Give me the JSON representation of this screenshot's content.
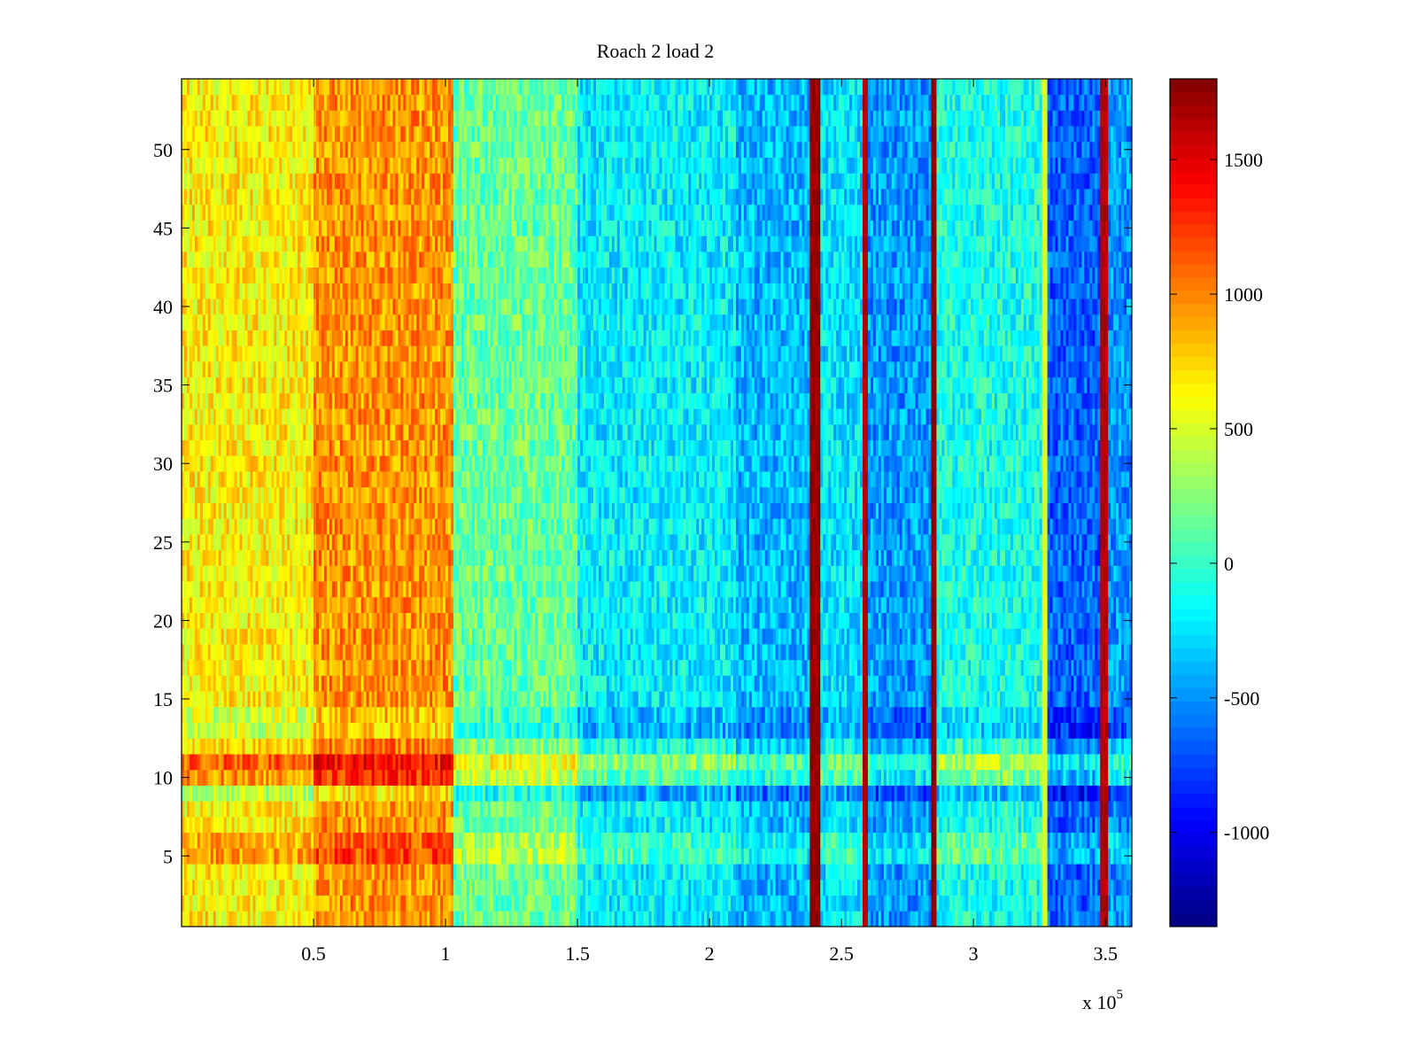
{
  "chart_data": {
    "type": "heatmap",
    "title": "Roach 2 load 2",
    "xlabel": "",
    "ylabel": "",
    "x_exponent_label": "x 10",
    "x_exponent_power": "5",
    "xlim": [
      0,
      360000
    ],
    "ylim": [
      0.5,
      54.5
    ],
    "rows": 54,
    "x_ticks": [
      {
        "value": 50000,
        "label": "0.5"
      },
      {
        "value": 100000,
        "label": "1"
      },
      {
        "value": 150000,
        "label": "1.5"
      },
      {
        "value": 200000,
        "label": "2"
      },
      {
        "value": 250000,
        "label": "2.5"
      },
      {
        "value": 300000,
        "label": "3"
      },
      {
        "value": 350000,
        "label": "3.5"
      }
    ],
    "y_ticks": [
      {
        "value": 5,
        "label": "5"
      },
      {
        "value": 10,
        "label": "10"
      },
      {
        "value": 15,
        "label": "15"
      },
      {
        "value": 20,
        "label": "20"
      },
      {
        "value": 25,
        "label": "25"
      },
      {
        "value": 30,
        "label": "30"
      },
      {
        "value": 35,
        "label": "35"
      },
      {
        "value": 40,
        "label": "40"
      },
      {
        "value": 45,
        "label": "45"
      },
      {
        "value": 50,
        "label": "50"
      }
    ],
    "colorbar": {
      "colormap": "jet",
      "clim": [
        -1350,
        1800
      ],
      "ticks": [
        {
          "value": 1500,
          "label": "1500"
        },
        {
          "value": 1000,
          "label": "1000"
        },
        {
          "value": 500,
          "label": "500"
        },
        {
          "value": 0,
          "label": "0"
        },
        {
          "value": -500,
          "label": "-500"
        },
        {
          "value": -1000,
          "label": "-1000"
        }
      ]
    },
    "column_profile": [
      {
        "x_start": 0,
        "x_end": 50000,
        "value": 650
      },
      {
        "x_start": 50000,
        "x_end": 103000,
        "value": 950
      },
      {
        "x_start": 103000,
        "x_end": 150000,
        "value": 150
      },
      {
        "x_start": 150000,
        "x_end": 210000,
        "value": -200
      },
      {
        "x_start": 210000,
        "x_end": 238000,
        "value": -380
      },
      {
        "x_start": 238000,
        "x_end": 242000,
        "value": 1750
      },
      {
        "x_start": 242000,
        "x_end": 258000,
        "value": -250
      },
      {
        "x_start": 258000,
        "x_end": 260000,
        "value": 1650
      },
      {
        "x_start": 260000,
        "x_end": 284000,
        "value": -480
      },
      {
        "x_start": 284000,
        "x_end": 286000,
        "value": 1750
      },
      {
        "x_start": 286000,
        "x_end": 326000,
        "value": -100
      },
      {
        "x_start": 326000,
        "x_end": 328000,
        "value": 500
      },
      {
        "x_start": 328000,
        "x_end": 348000,
        "value": -650
      },
      {
        "x_start": 348000,
        "x_end": 351000,
        "value": 1650
      },
      {
        "x_start": 351000,
        "x_end": 360000,
        "value": -500
      }
    ],
    "row_offsets": [
      {
        "row": 5,
        "delta": 250
      },
      {
        "row": 6,
        "delta": 200
      },
      {
        "row": 9,
        "delta": -250
      },
      {
        "row": 10,
        "delta": 300
      },
      {
        "row": 11,
        "delta": 450
      },
      {
        "row": 12,
        "delta": 100
      },
      {
        "row": 13,
        "delta": -200
      },
      {
        "row": 14,
        "delta": -150
      }
    ]
  }
}
